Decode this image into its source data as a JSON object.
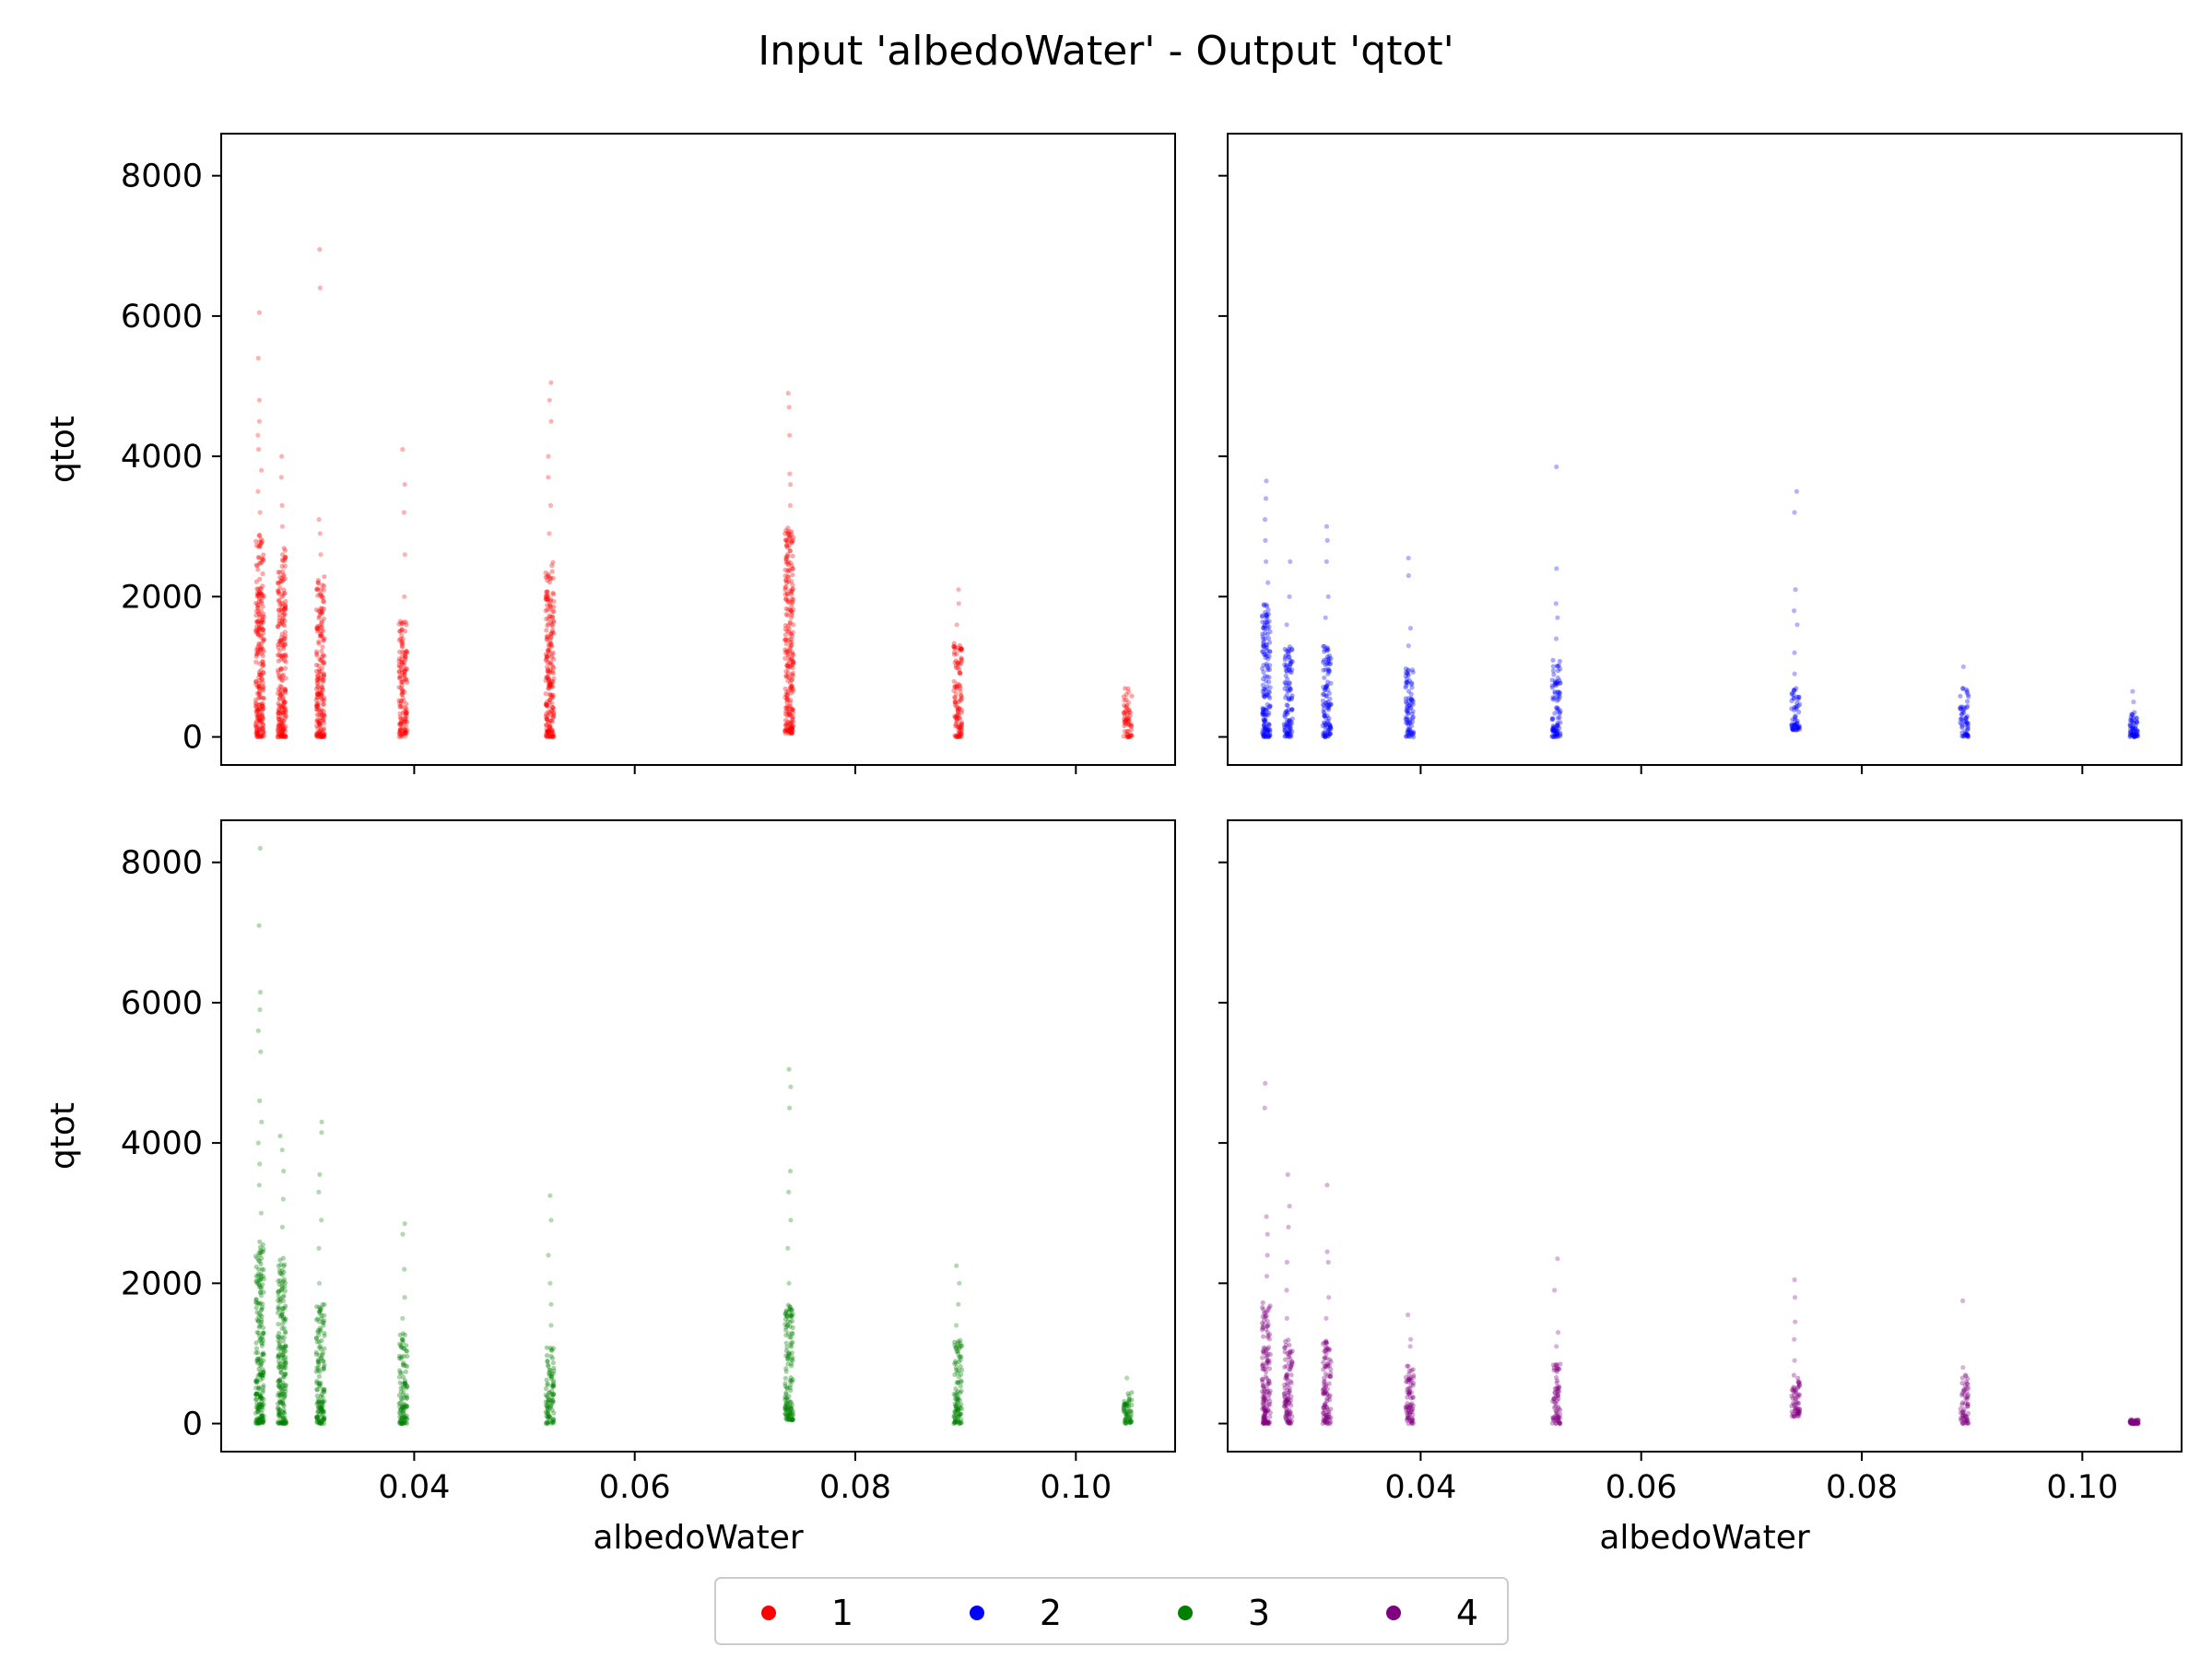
{
  "figure": {
    "title": "Input 'albedoWater' - Output 'qtot'"
  },
  "legend": {
    "placement": "bottom-center",
    "entries": [
      {
        "label": "1",
        "color": "#ff0000"
      },
      {
        "label": "2",
        "color": "#0000ff"
      },
      {
        "label": "3",
        "color": "#008000"
      },
      {
        "label": "4",
        "color": "#800080"
      }
    ]
  },
  "chart_data": [
    {
      "type": "scatter",
      "panel": "top-left",
      "series": "1",
      "color": "#ff0000",
      "xlabel": "",
      "ylabel": "qtot",
      "xlim": [
        0.0225,
        0.109
      ],
      "ylim": [
        -400,
        8600
      ],
      "xticks": [
        0.04,
        0.06,
        0.08,
        0.1
      ],
      "yticks": [
        0,
        2000,
        4000,
        6000,
        8000
      ],
      "show_xtick_labels": false,
      "show_ytick_labels": true,
      "columns": [
        {
          "x": 0.026,
          "dense_min": 0,
          "dense_max": 2900,
          "outliers": [
            3200,
            3500,
            3800,
            4100,
            4300,
            4500,
            4800,
            5400,
            6050
          ]
        },
        {
          "x": 0.028,
          "dense_min": 0,
          "dense_max": 2700,
          "outliers": [
            3000,
            3300,
            3700,
            4000
          ]
        },
        {
          "x": 0.0315,
          "dense_min": 0,
          "dense_max": 2300,
          "outliers": [
            2600,
            2900,
            3100,
            6400,
            6950
          ]
        },
        {
          "x": 0.039,
          "dense_min": 0,
          "dense_max": 1650,
          "outliers": [
            2000,
            2600,
            3200,
            3600,
            4100
          ]
        },
        {
          "x": 0.0523,
          "dense_min": 0,
          "dense_max": 2500,
          "outliers": [
            2900,
            3300,
            3700,
            4000,
            4500,
            4800,
            5050
          ]
        },
        {
          "x": 0.074,
          "dense_min": 50,
          "dense_max": 3000,
          "outliers": [
            3300,
            3600,
            3750,
            4300,
            4700,
            4900
          ]
        },
        {
          "x": 0.0893,
          "dense_min": 0,
          "dense_max": 1350,
          "outliers": [
            1600,
            1900,
            2100
          ]
        },
        {
          "x": 0.1047,
          "dense_min": 0,
          "dense_max": 720,
          "outliers": []
        }
      ]
    },
    {
      "type": "scatter",
      "panel": "top-right",
      "series": "2",
      "color": "#0000ff",
      "xlabel": "",
      "ylabel": "",
      "xlim": [
        0.0225,
        0.109
      ],
      "ylim": [
        -400,
        8600
      ],
      "xticks": [
        0.04,
        0.06,
        0.08,
        0.1
      ],
      "yticks": [
        0,
        2000,
        4000,
        6000,
        8000
      ],
      "show_xtick_labels": false,
      "show_ytick_labels": false,
      "columns": [
        {
          "x": 0.026,
          "dense_min": 0,
          "dense_max": 1900,
          "outliers": [
            2200,
            2500,
            2800,
            3100,
            3400,
            3650
          ]
        },
        {
          "x": 0.028,
          "dense_min": 0,
          "dense_max": 1300,
          "outliers": [
            1600,
            2000,
            2500
          ]
        },
        {
          "x": 0.0315,
          "dense_min": 0,
          "dense_max": 1300,
          "outliers": [
            1700,
            2000,
            2500,
            2800,
            3000
          ]
        },
        {
          "x": 0.039,
          "dense_min": 0,
          "dense_max": 1000,
          "outliers": [
            1300,
            1550,
            2300,
            2550
          ]
        },
        {
          "x": 0.0523,
          "dense_min": 0,
          "dense_max": 1100,
          "outliers": [
            1400,
            1700,
            1900,
            2400,
            3850
          ]
        },
        {
          "x": 0.074,
          "dense_min": 100,
          "dense_max": 700,
          "outliers": [
            900,
            1200,
            1600,
            1800,
            2100,
            3200,
            3500
          ]
        },
        {
          "x": 0.0893,
          "dense_min": 0,
          "dense_max": 700,
          "outliers": [
            1000
          ]
        },
        {
          "x": 0.1047,
          "dense_min": 0,
          "dense_max": 350,
          "outliers": [
            500,
            650
          ]
        }
      ]
    },
    {
      "type": "scatter",
      "panel": "bottom-left",
      "series": "3",
      "color": "#008000",
      "xlabel": "albedoWater",
      "ylabel": "qtot",
      "xlim": [
        0.0225,
        0.109
      ],
      "ylim": [
        -400,
        8600
      ],
      "xticks": [
        0.04,
        0.06,
        0.08,
        0.1
      ],
      "yticks": [
        0,
        2000,
        4000,
        6000,
        8000
      ],
      "show_xtick_labels": true,
      "show_ytick_labels": true,
      "columns": [
        {
          "x": 0.026,
          "dense_min": 0,
          "dense_max": 2600,
          "outliers": [
            3000,
            3400,
            3700,
            4000,
            4300,
            4600,
            5300,
            5600,
            5900,
            6150,
            7100,
            8200
          ]
        },
        {
          "x": 0.028,
          "dense_min": 0,
          "dense_max": 2400,
          "outliers": [
            2800,
            3200,
            3600,
            3900,
            4100
          ]
        },
        {
          "x": 0.0315,
          "dense_min": 0,
          "dense_max": 1700,
          "outliers": [
            2000,
            2500,
            2900,
            3300,
            3550,
            4150,
            4300
          ]
        },
        {
          "x": 0.039,
          "dense_min": 0,
          "dense_max": 1300,
          "outliers": [
            1500,
            1800,
            2200,
            2700,
            2850
          ]
        },
        {
          "x": 0.0523,
          "dense_min": 0,
          "dense_max": 1100,
          "outliers": [
            1400,
            1700,
            2000,
            2400,
            2900,
            3250
          ]
        },
        {
          "x": 0.074,
          "dense_min": 50,
          "dense_max": 1700,
          "outliers": [
            2000,
            2500,
            2900,
            3300,
            3600,
            4500,
            4800,
            5050
          ]
        },
        {
          "x": 0.0893,
          "dense_min": 0,
          "dense_max": 1200,
          "outliers": [
            1400,
            1700,
            2000,
            2250
          ]
        },
        {
          "x": 0.1047,
          "dense_min": 0,
          "dense_max": 450,
          "outliers": [
            650
          ]
        }
      ]
    },
    {
      "type": "scatter",
      "panel": "bottom-right",
      "series": "4",
      "color": "#800080",
      "xlabel": "albedoWater",
      "ylabel": "",
      "xlim": [
        0.0225,
        0.109
      ],
      "ylim": [
        -400,
        8600
      ],
      "xticks": [
        0.04,
        0.06,
        0.08,
        0.1
      ],
      "yticks": [
        0,
        2000,
        4000,
        6000,
        8000
      ],
      "show_xtick_labels": true,
      "show_ytick_labels": false,
      "columns": [
        {
          "x": 0.026,
          "dense_min": 0,
          "dense_max": 1800,
          "outliers": [
            2100,
            2400,
            2700,
            2950,
            4500,
            4850
          ]
        },
        {
          "x": 0.028,
          "dense_min": 0,
          "dense_max": 1200,
          "outliers": [
            1500,
            1900,
            2300,
            2800,
            3100,
            3550
          ]
        },
        {
          "x": 0.0315,
          "dense_min": 0,
          "dense_max": 1200,
          "outliers": [
            1500,
            1800,
            2300,
            2450,
            3400
          ]
        },
        {
          "x": 0.039,
          "dense_min": 0,
          "dense_max": 900,
          "outliers": [
            1100,
            1200,
            1550
          ]
        },
        {
          "x": 0.0523,
          "dense_min": 0,
          "dense_max": 850,
          "outliers": [
            1100,
            1300,
            1900,
            2350
          ]
        },
        {
          "x": 0.074,
          "dense_min": 100,
          "dense_max": 700,
          "outliers": [
            900,
            1200,
            1450,
            1800,
            2050
          ]
        },
        {
          "x": 0.0893,
          "dense_min": 0,
          "dense_max": 700,
          "outliers": [
            800,
            1750
          ]
        },
        {
          "x": 0.1047,
          "dense_min": 0,
          "dense_max": 60,
          "outliers": []
        }
      ]
    }
  ]
}
